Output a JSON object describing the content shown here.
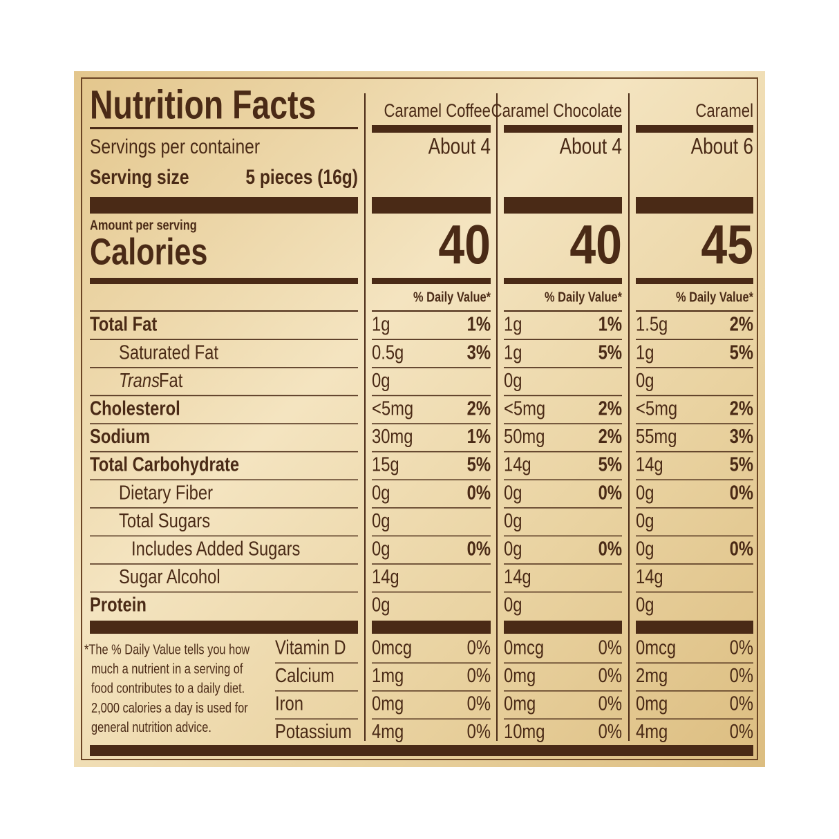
{
  "title": "Nutrition Facts",
  "servings_label": "Servings per container",
  "serving_size_label": "Serving size",
  "serving_size": "5 pieces (16g)",
  "amount_per_serving": "Amount per serving",
  "calories_label": "Calories",
  "daily_value_header": "% Daily Value*",
  "nutrients": [
    {
      "label": "Total Fat",
      "level": 0
    },
    {
      "label": "Saturated Fat",
      "level": 1
    },
    {
      "label_italic": "Trans",
      "label": "Fat",
      "level": 1
    },
    {
      "label": "Cholesterol",
      "level": 0
    },
    {
      "label": "Sodium",
      "level": 0
    },
    {
      "label": "Total Carbohydrate",
      "level": 0
    },
    {
      "label": "Dietary Fiber",
      "level": 1
    },
    {
      "label": "Total Sugars",
      "level": 1
    },
    {
      "label": "Includes Added Sugars",
      "level": 2
    },
    {
      "label": "Sugar Alcohol",
      "level": 1
    },
    {
      "label": "Protein",
      "level": 0
    }
  ],
  "vitamins": [
    "Vitamin D",
    "Calcium",
    "Iron",
    "Potassium"
  ],
  "footnote": [
    "*The % Daily Value tells you how",
    "much a nutrient in a serving of",
    "food contributes to a daily diet.",
    "2,000 calories a day is used for",
    "general nutrition advice."
  ],
  "products": [
    {
      "name": "Caramel Coffee",
      "servings": "About 4",
      "calories": 40,
      "nutrients": [
        [
          "1g",
          "1%"
        ],
        [
          "0.5g",
          "3%"
        ],
        [
          "0g",
          null
        ],
        [
          "<5mg",
          "2%"
        ],
        [
          "30mg",
          "1%"
        ],
        [
          "15g",
          "5%"
        ],
        [
          "0g",
          "0%"
        ],
        [
          "0g",
          null
        ],
        [
          "0g",
          "0%"
        ],
        [
          "14g",
          null
        ],
        [
          "0g",
          null
        ]
      ],
      "vitamins": [
        [
          "0mcg",
          "0%"
        ],
        [
          "1mg",
          "0%"
        ],
        [
          "0mg",
          "0%"
        ],
        [
          "4mg",
          "0%"
        ]
      ]
    },
    {
      "name": "Caramel Chocolate",
      "servings": "About 4",
      "calories": 40,
      "nutrients": [
        [
          "1g",
          "1%"
        ],
        [
          "1g",
          "5%"
        ],
        [
          "0g",
          null
        ],
        [
          "<5mg",
          "2%"
        ],
        [
          "50mg",
          "2%"
        ],
        [
          "14g",
          "5%"
        ],
        [
          "0g",
          "0%"
        ],
        [
          "0g",
          null
        ],
        [
          "0g",
          "0%"
        ],
        [
          "14g",
          null
        ],
        [
          "0g",
          null
        ]
      ],
      "vitamins": [
        [
          "0mcg",
          "0%"
        ],
        [
          "0mg",
          "0%"
        ],
        [
          "0mg",
          "0%"
        ],
        [
          "10mg",
          "0%"
        ]
      ]
    },
    {
      "name": "Caramel",
      "servings": "About 6",
      "calories": 45,
      "nutrients": [
        [
          "1.5g",
          "2%"
        ],
        [
          "1g",
          "5%"
        ],
        [
          "0g",
          null
        ],
        [
          "<5mg",
          "2%"
        ],
        [
          "55mg",
          "3%"
        ],
        [
          "14g",
          "5%"
        ],
        [
          "0g",
          "0%"
        ],
        [
          "0g",
          null
        ],
        [
          "0g",
          "0%"
        ],
        [
          "14g",
          null
        ],
        [
          "0g",
          null
        ]
      ],
      "vitamins": [
        [
          "0mcg",
          "0%"
        ],
        [
          "2mg",
          "0%"
        ],
        [
          "0mg",
          "0%"
        ],
        [
          "4mg",
          "0%"
        ]
      ]
    }
  ]
}
